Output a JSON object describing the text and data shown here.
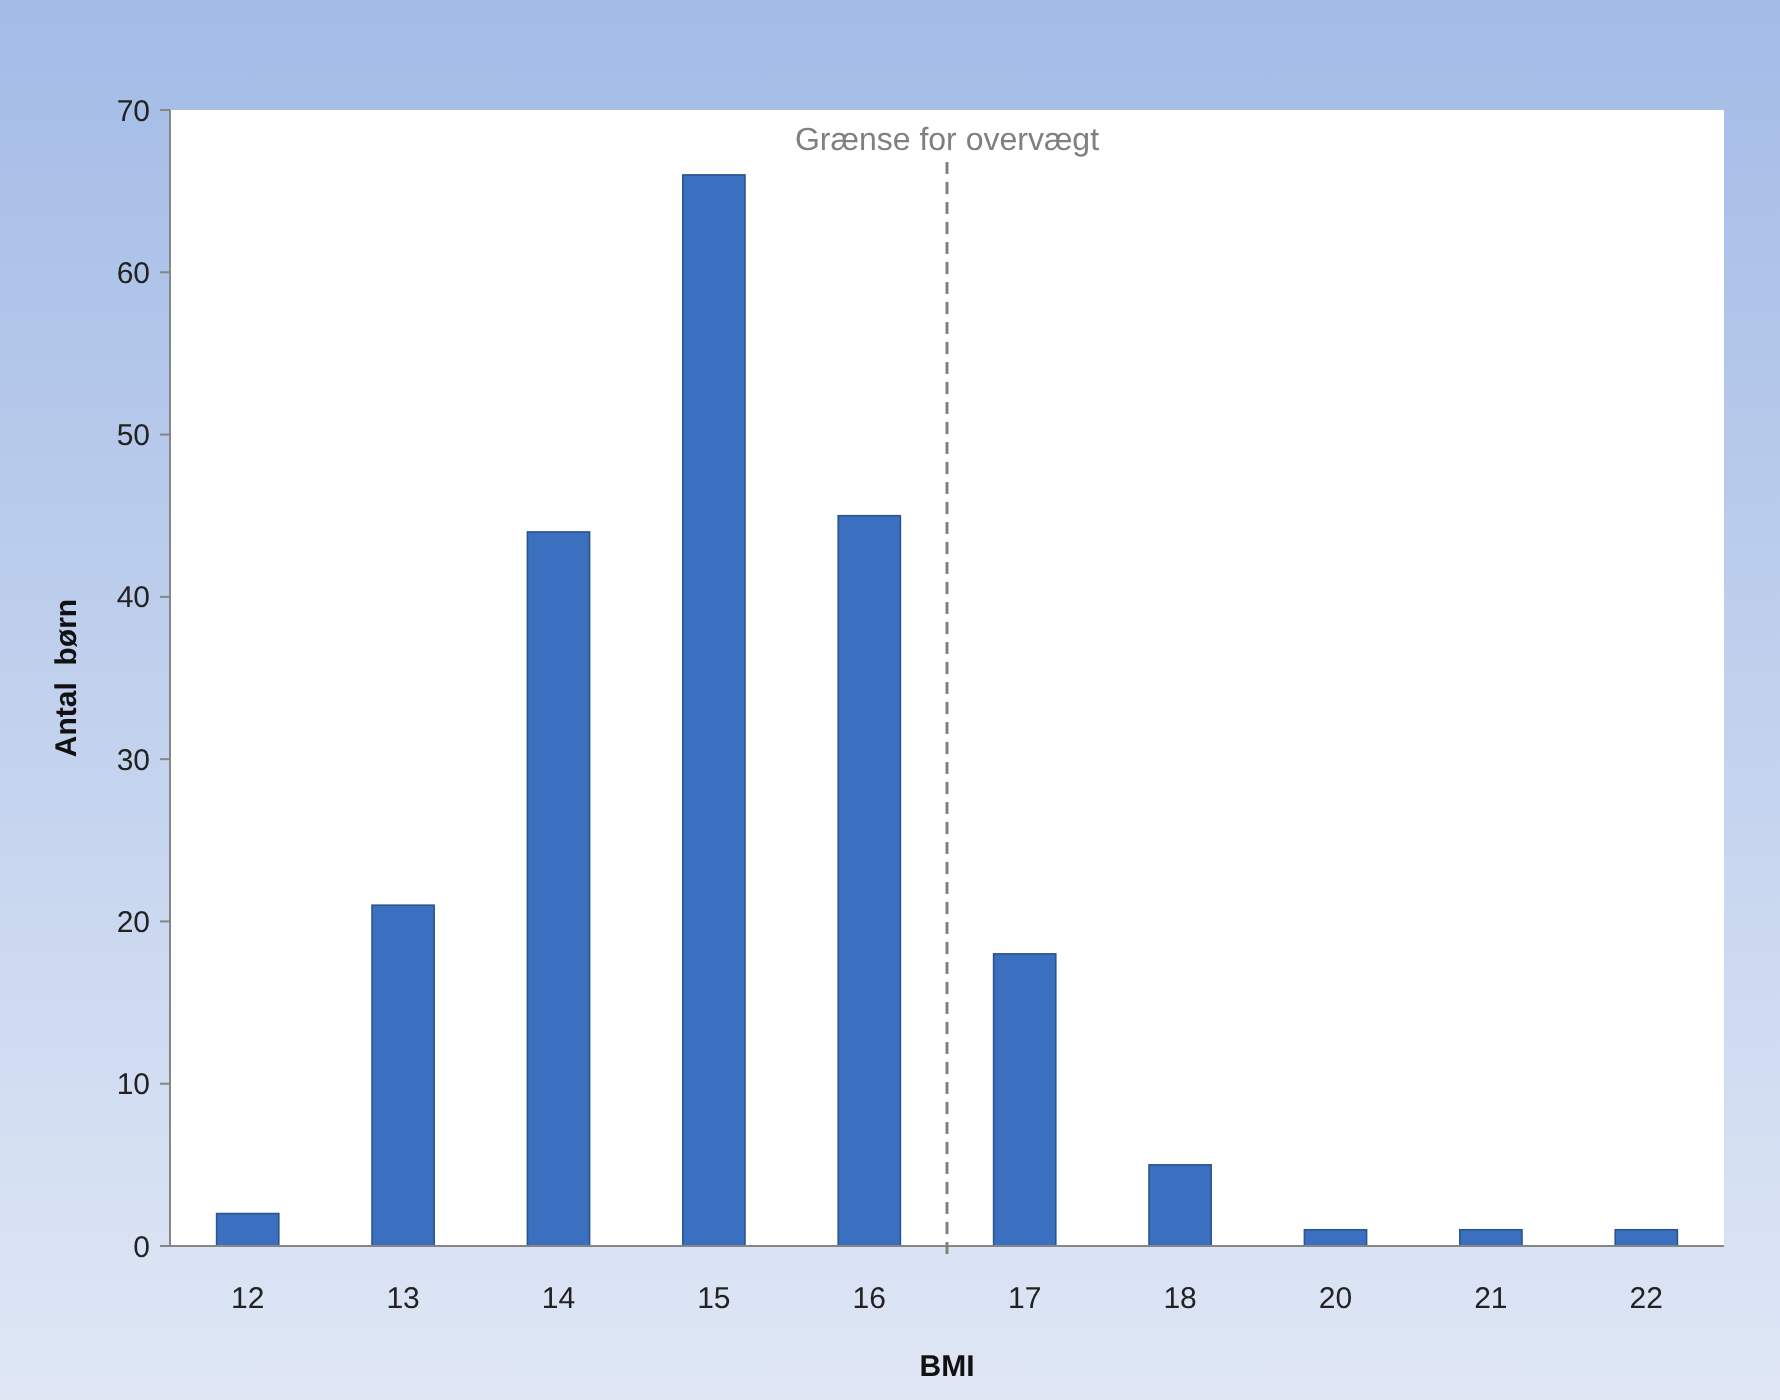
{
  "chart_data": {
    "type": "bar",
    "xlabel": "BMI",
    "ylabel": "Antal  børn",
    "categories": [
      "12",
      "13",
      "14",
      "15",
      "16",
      "17",
      "18",
      "20",
      "21",
      "22"
    ],
    "values": [
      2,
      21,
      44,
      66,
      45,
      18,
      5,
      1,
      1,
      1
    ],
    "color": "#3b70c0",
    "ylim": [
      0,
      70
    ],
    "yticks": [
      0,
      10,
      20,
      30,
      40,
      50,
      60,
      70
    ],
    "grid": false,
    "annotations": [
      "Grænse for overvægt"
    ]
  }
}
